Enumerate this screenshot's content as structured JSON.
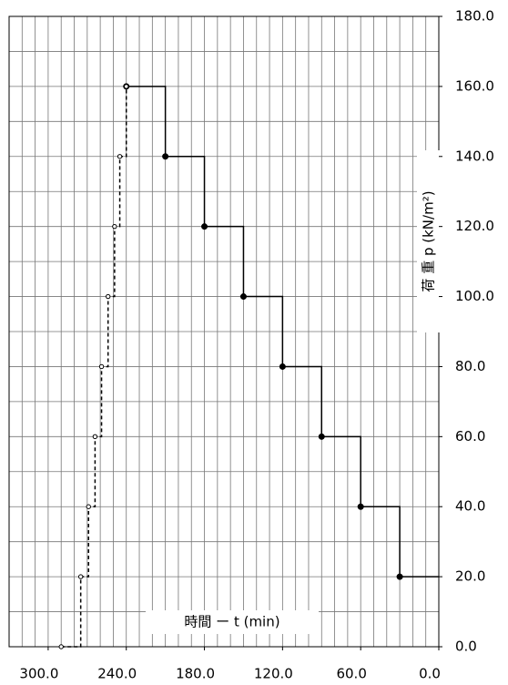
{
  "chart_data": {
    "type": "step",
    "xlabel": "時間 ー t (min)",
    "ylabel": "荷 重 p (kN/m²)",
    "xlim": [
      330,
      0
    ],
    "ylim": [
      0,
      180
    ],
    "xticks": [
      {
        "value": 300,
        "label": "300.0"
      },
      {
        "value": 240,
        "label": "240.0"
      },
      {
        "value": 180,
        "label": "180.0"
      },
      {
        "value": 120,
        "label": "120.0"
      },
      {
        "value": 60,
        "label": "60.0"
      },
      {
        "value": 0,
        "label": "0.0"
      }
    ],
    "yticks": [
      {
        "value": 0,
        "label": "0.0"
      },
      {
        "value": 20,
        "label": "20.0"
      },
      {
        "value": 40,
        "label": "40.0"
      },
      {
        "value": 60,
        "label": "60.0"
      },
      {
        "value": 80,
        "label": "80.0"
      },
      {
        "value": 100,
        "label": "100.0"
      },
      {
        "value": 120,
        "label": "120.0"
      },
      {
        "value": 140,
        "label": "140.0"
      },
      {
        "value": 160,
        "label": "160.0"
      },
      {
        "value": 180,
        "label": "180.0"
      }
    ],
    "grid": true,
    "series": [
      {
        "color": "#000000",
        "style": "solid",
        "marker": "filled",
        "x": [
          30,
          60,
          90,
          120,
          150,
          180,
          210,
          240
        ],
        "values": [
          20,
          40,
          60,
          80,
          100,
          120,
          140,
          160
        ]
      },
      {
        "color": "#000000",
        "style": "dashed",
        "marker": "hollow",
        "x": [
          290,
          275,
          269,
          264,
          259,
          254,
          249,
          245,
          240
        ],
        "values": [
          0,
          20,
          40,
          60,
          80,
          100,
          120,
          140,
          160
        ]
      }
    ]
  }
}
